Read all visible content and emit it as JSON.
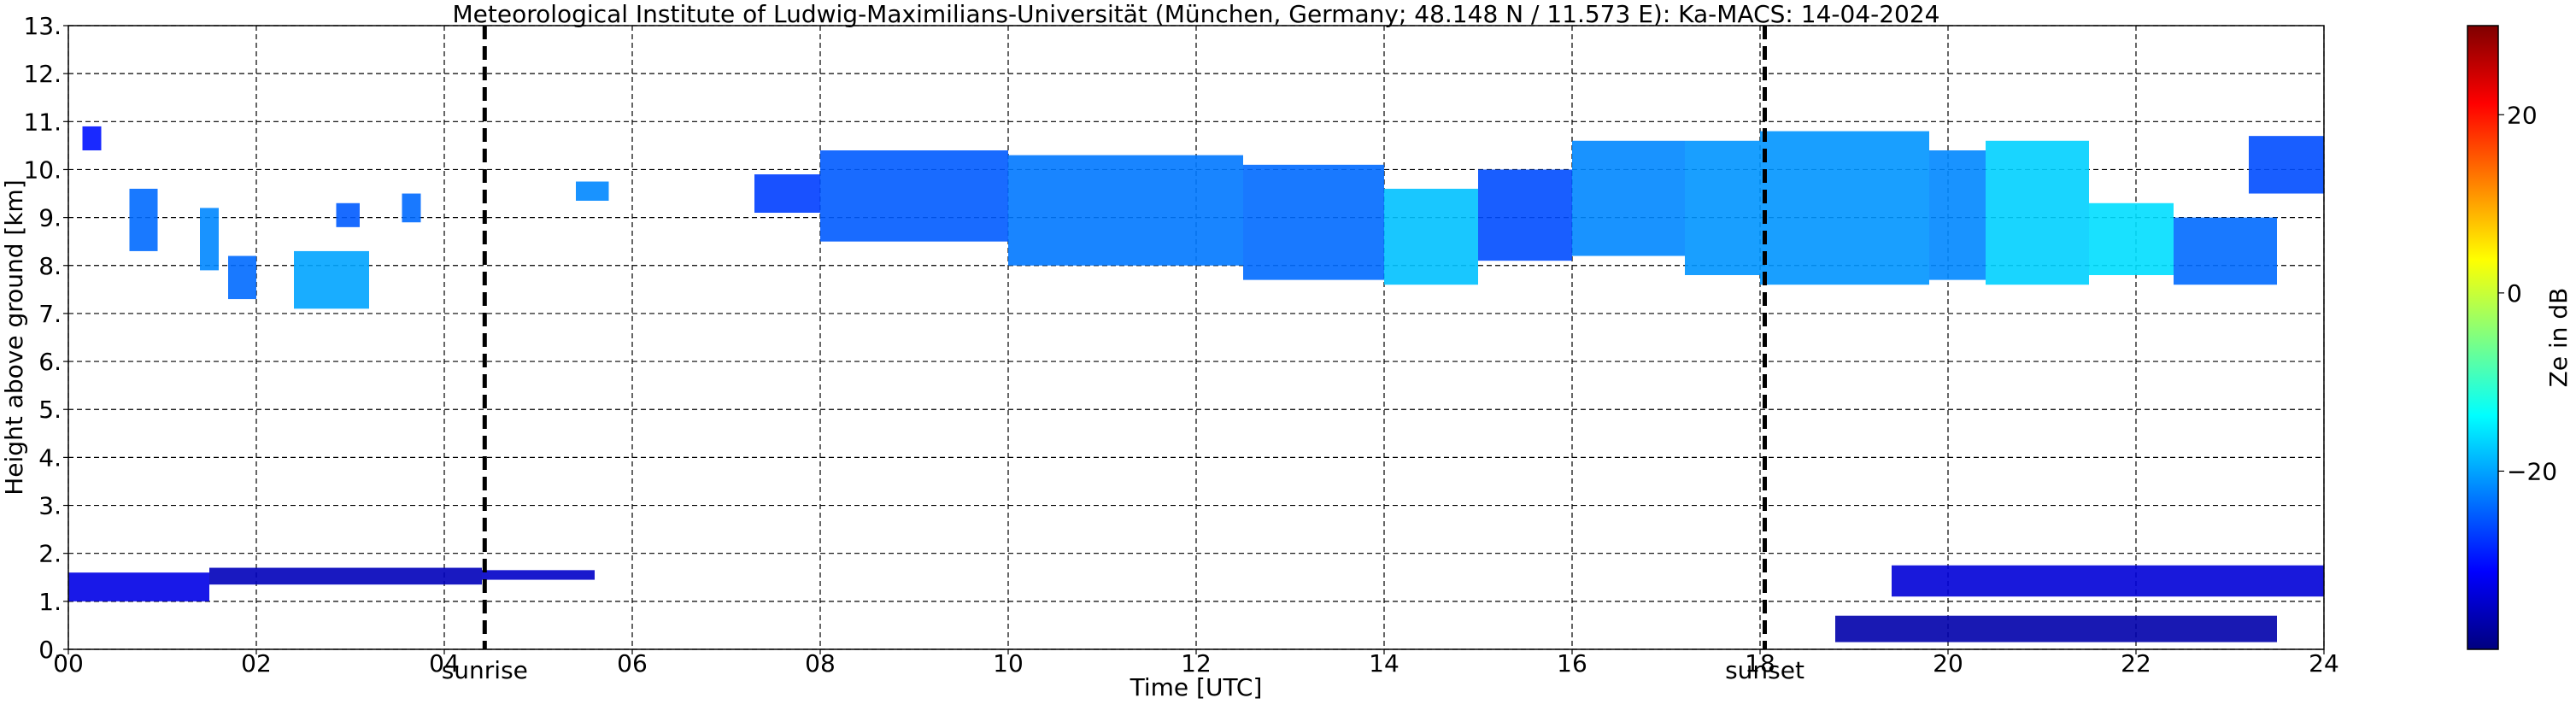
{
  "chart_data": {
    "type": "heatmap",
    "title": "Meteorological Institute of Ludwig-Maximilians-Universität (München, Germany; 48.148 N / 11.573 E):    Ka-MACS: 14-04-2024",
    "xlabel": "Time [UTC]",
    "ylabel": "Height above ground [km]",
    "xlim": [
      0,
      24
    ],
    "ylim": [
      0,
      13
    ],
    "x_ticks": [
      "00",
      "02",
      "04",
      "06",
      "08",
      "10",
      "12",
      "14",
      "16",
      "18",
      "20",
      "22",
      "24"
    ],
    "y_ticks": [
      "0.",
      "1.",
      "2.",
      "3.",
      "4.",
      "5.",
      "6.",
      "7.",
      "8.",
      "9.",
      "10.",
      "11.",
      "12.",
      "13."
    ],
    "grid": true,
    "colorbar": {
      "label": "Ze in dB",
      "range": [
        -40,
        30
      ],
      "ticks": [
        "-20",
        "0",
        "20"
      ],
      "colormap": "jet"
    },
    "vlines": [
      {
        "x": 4.43,
        "label": "sunrise"
      },
      {
        "x": 18.05,
        "label": "sunset"
      }
    ],
    "echo_regions": [
      {
        "t_start": 0.15,
        "t_end": 0.35,
        "h_bottom": 10.4,
        "h_top": 10.9,
        "ze": -30
      },
      {
        "t_start": 0.65,
        "t_end": 0.95,
        "h_bottom": 8.3,
        "h_top": 9.6,
        "ze": -24
      },
      {
        "t_start": 1.4,
        "t_end": 1.6,
        "h_bottom": 7.9,
        "h_top": 9.2,
        "ze": -22
      },
      {
        "t_start": 1.7,
        "t_end": 2.0,
        "h_bottom": 7.3,
        "h_top": 8.2,
        "ze": -24
      },
      {
        "t_start": 2.4,
        "t_end": 3.2,
        "h_bottom": 7.1,
        "h_top": 8.3,
        "ze": -20
      },
      {
        "t_start": 2.85,
        "t_end": 3.1,
        "h_bottom": 8.8,
        "h_top": 9.3,
        "ze": -25
      },
      {
        "t_start": 3.55,
        "t_end": 3.75,
        "h_bottom": 8.9,
        "h_top": 9.5,
        "ze": -24
      },
      {
        "t_start": 5.4,
        "t_end": 5.75,
        "h_bottom": 9.35,
        "h_top": 9.75,
        "ze": -22
      },
      {
        "t_start": 7.3,
        "t_end": 8.0,
        "h_bottom": 9.1,
        "h_top": 9.9,
        "ze": -27
      },
      {
        "t_start": 8.0,
        "t_end": 10.0,
        "h_bottom": 8.5,
        "h_top": 10.4,
        "ze": -25
      },
      {
        "t_start": 10.0,
        "t_end": 12.5,
        "h_bottom": 8.0,
        "h_top": 10.3,
        "ze": -23
      },
      {
        "t_start": 12.5,
        "t_end": 14.0,
        "h_bottom": 7.7,
        "h_top": 10.1,
        "ze": -24
      },
      {
        "t_start": 14.0,
        "t_end": 15.0,
        "h_bottom": 7.6,
        "h_top": 9.6,
        "ze": -18
      },
      {
        "t_start": 15.0,
        "t_end": 16.0,
        "h_bottom": 8.1,
        "h_top": 10.0,
        "ze": -26
      },
      {
        "t_start": 16.0,
        "t_end": 17.2,
        "h_bottom": 8.2,
        "h_top": 10.6,
        "ze": -22
      },
      {
        "t_start": 17.2,
        "t_end": 18.0,
        "h_bottom": 7.8,
        "h_top": 10.6,
        "ze": -21
      },
      {
        "t_start": 18.0,
        "t_end": 19.8,
        "h_bottom": 7.6,
        "h_top": 10.8,
        "ze": -21
      },
      {
        "t_start": 19.8,
        "t_end": 20.4,
        "h_bottom": 7.7,
        "h_top": 10.4,
        "ze": -22
      },
      {
        "t_start": 20.4,
        "t_end": 21.5,
        "h_bottom": 7.6,
        "h_top": 10.6,
        "ze": -17
      },
      {
        "t_start": 21.5,
        "t_end": 22.4,
        "h_bottom": 7.8,
        "h_top": 9.3,
        "ze": -16
      },
      {
        "t_start": 22.4,
        "t_end": 23.5,
        "h_bottom": 7.6,
        "h_top": 9.0,
        "ze": -24
      },
      {
        "t_start": 23.2,
        "t_end": 24.0,
        "h_bottom": 9.5,
        "h_top": 10.7,
        "ze": -26
      },
      {
        "t_start": 0.0,
        "t_end": 1.5,
        "h_bottom": 1.0,
        "h_top": 1.6,
        "ze": -33
      },
      {
        "t_start": 1.5,
        "t_end": 4.4,
        "h_bottom": 1.35,
        "h_top": 1.7,
        "ze": -36
      },
      {
        "t_start": 4.4,
        "t_end": 5.6,
        "h_bottom": 1.45,
        "h_top": 1.65,
        "ze": -35
      },
      {
        "t_start": 19.4,
        "t_end": 24.0,
        "h_bottom": 1.1,
        "h_top": 1.75,
        "ze": -34
      },
      {
        "t_start": 18.8,
        "t_end": 23.5,
        "h_bottom": 0.15,
        "h_top": 0.7,
        "ze": -37
      }
    ]
  }
}
